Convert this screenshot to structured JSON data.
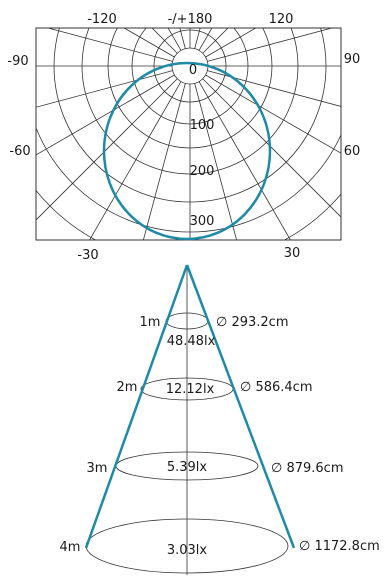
{
  "polar": {
    "angle_labels": {
      "top_left": "-120",
      "top_center": "-/+180",
      "top_right": "120",
      "left_upper": "-90",
      "right_upper": "90",
      "left_lower": "-60",
      "right_lower": "60",
      "bottom_left": "-30",
      "bottom_right": "30"
    },
    "radial_labels": [
      "0",
      "100",
      "200",
      "300"
    ],
    "curve_color": "#1f8aa6",
    "grid_color": "#333333"
  },
  "cone": {
    "line_color": "#1f8aa6",
    "rows": [
      {
        "distance": "1m",
        "illuminance": "48.48lx",
        "diameter": "∅ 293.2cm"
      },
      {
        "distance": "2m",
        "illuminance": "12.12lx",
        "diameter": "∅ 586.4cm"
      },
      {
        "distance": "3m",
        "illuminance": "5.39lx",
        "diameter": "∅ 879.6cm"
      },
      {
        "distance": "4m",
        "illuminance": "3.03lx",
        "diameter": "∅ 1172.8cm"
      }
    ]
  }
}
